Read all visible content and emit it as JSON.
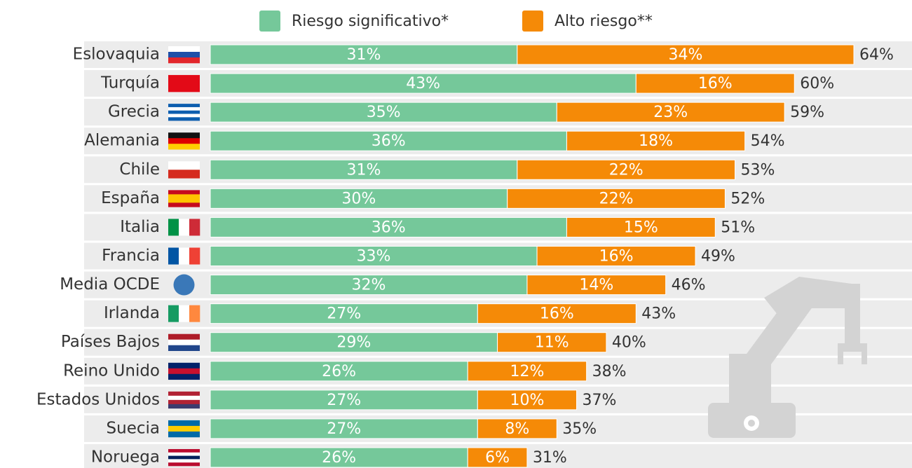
{
  "chart_data": {
    "type": "stacked-bar",
    "categories": [
      "Eslovaquia",
      "Turquía",
      "Grecia",
      "Alemania",
      "Chile",
      "España",
      "Italia",
      "Francia",
      "Media OCDE",
      "Irlanda",
      "Países Bajos",
      "Reino Unido",
      "Estados Unidos",
      "Suecia",
      "Noruega"
    ],
    "series": [
      {
        "name": "Riesgo significativo*",
        "color": "#75c89a",
        "values": [
          31,
          43,
          35,
          36,
          31,
          30,
          36,
          33,
          32,
          27,
          29,
          26,
          27,
          27,
          26
        ],
        "value_labels": [
          "31%",
          "43%",
          "35%",
          "36%",
          "31%",
          "30%",
          "36%",
          "33%",
          "32%",
          "27%",
          "29%",
          "26%",
          "27%",
          "27%",
          "26%"
        ]
      },
      {
        "name": "Alto riesgo**",
        "color": "#f58a07",
        "values": [
          34,
          16,
          23,
          18,
          22,
          22,
          15,
          16,
          14,
          16,
          11,
          12,
          10,
          8,
          6
        ],
        "value_labels": [
          "34%",
          "16%",
          "23%",
          "18%",
          "22%",
          "22%",
          "15%",
          "16%",
          "14%",
          "16%",
          "11%",
          "12%",
          "10%",
          "8%",
          "6%"
        ]
      }
    ],
    "total_labels": [
      "64%",
      "60%",
      "59%",
      "54%",
      "53%",
      "52%",
      "51%",
      "49%",
      "46%",
      "43%",
      "40%",
      "38%",
      "37%",
      "35%",
      "31%"
    ]
  }
}
